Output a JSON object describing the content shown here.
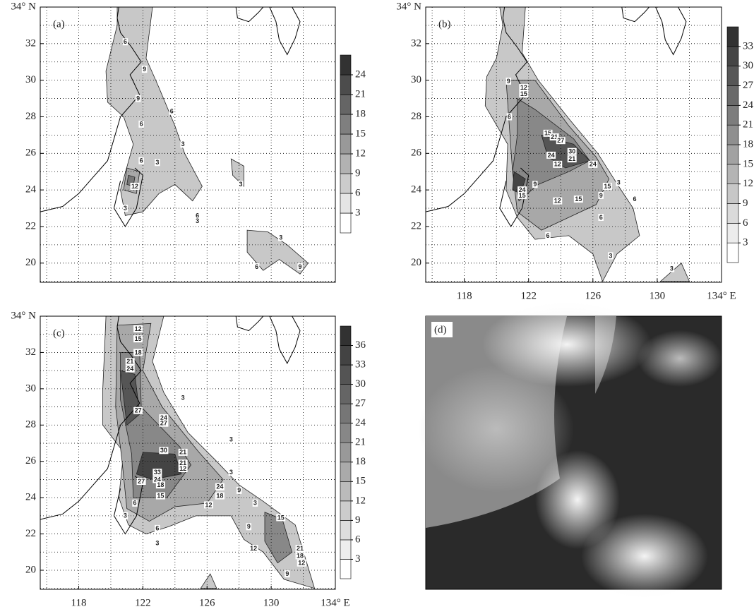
{
  "panels": [
    {
      "label": "(a)",
      "xlim": [
        115.6,
        134
      ],
      "ylim": [
        18.95,
        34
      ],
      "yticks": [
        20,
        22,
        24,
        26,
        28,
        30,
        32,
        {
          "value": 34,
          "label": "34° N"
        }
      ],
      "colorbar": [
        3,
        6,
        9,
        12,
        15,
        18,
        21,
        24
      ],
      "contour_labels": [
        "6",
        "9",
        "9",
        "6",
        "6",
        "3",
        "3",
        "6",
        "12",
        "3",
        "3",
        "6",
        "3",
        "3",
        "9",
        "6"
      ]
    },
    {
      "label": "(b)",
      "xlim": [
        115.6,
        134
      ],
      "ylim": [
        18.95,
        34
      ],
      "xticks": [
        118,
        122,
        126,
        130,
        {
          "value": 134,
          "label": "134° E"
        }
      ],
      "yticks": [
        20,
        22,
        24,
        26,
        28,
        30,
        32,
        {
          "value": 34,
          "label": "34° N"
        }
      ],
      "colorbar": [
        3,
        6,
        9,
        12,
        15,
        18,
        21,
        24,
        27,
        30,
        33
      ],
      "contour_labels": [
        "9",
        "12",
        "15",
        "6",
        "15",
        "21",
        "27",
        "30",
        "24",
        "21",
        "12",
        "24",
        "24",
        "15",
        "9",
        "12",
        "15",
        "9",
        "15",
        "3",
        "6",
        "6",
        "6",
        "3",
        "3"
      ]
    },
    {
      "label": "(c)",
      "xlim": [
        115.6,
        134
      ],
      "ylim": [
        18.95,
        34
      ],
      "xticks": [
        118,
        122,
        126,
        130,
        {
          "value": 134,
          "label": "134° E"
        }
      ],
      "yticks": [
        20,
        22,
        24,
        26,
        28,
        30,
        32,
        {
          "value": 34,
          "label": "34° N"
        }
      ],
      "colorbar": [
        3,
        6,
        9,
        12,
        15,
        18,
        21,
        24,
        27,
        30,
        33,
        36
      ],
      "contour_labels": [
        "12",
        "15",
        "18",
        "21",
        "24",
        "27",
        "3",
        "24",
        "27",
        "30",
        "21",
        "21",
        "12",
        "33",
        "27",
        "24",
        "18",
        "15",
        "6",
        "3",
        "6",
        "3",
        "12",
        "24",
        "18",
        "3",
        "3",
        "9",
        "3",
        "15",
        "9",
        "12",
        "21",
        "18",
        "12",
        "9"
      ]
    },
    {
      "label": "(d)"
    }
  ]
}
